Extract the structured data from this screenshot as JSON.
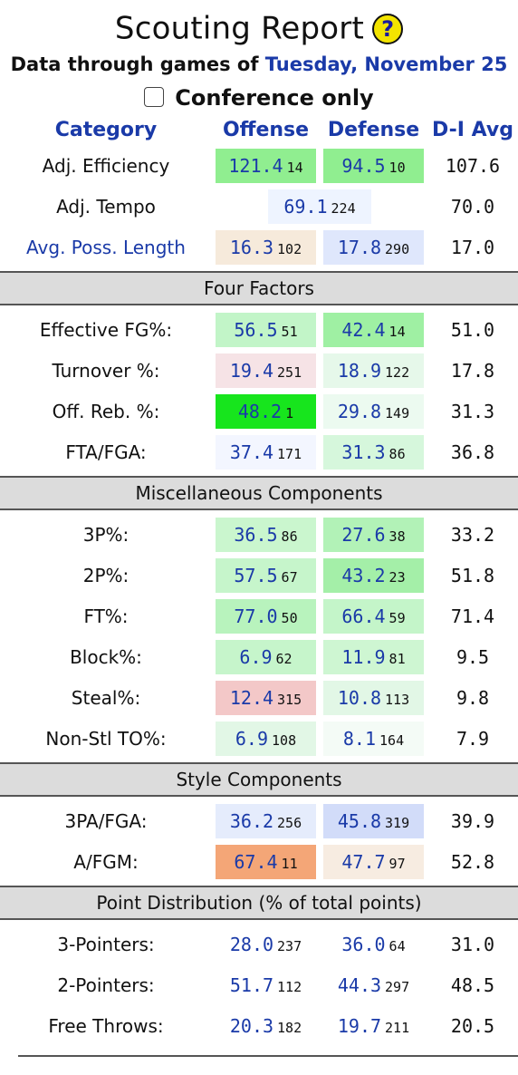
{
  "header": {
    "title": "Scouting Report",
    "help_symbol": "?",
    "subtitle_prefix": "Data through games of ",
    "subtitle_date": "Tuesday, November 25",
    "conference_only_label": "Conference only"
  },
  "columns": {
    "category": "Category",
    "offense": "Offense",
    "defense": "Defense",
    "avg": "D-I Avg"
  },
  "top_rows": [
    {
      "label": "Adj. Efficiency",
      "link": false,
      "off": "121.4",
      "off_rank": "14",
      "off_bg": "#90ee90",
      "def": "94.5",
      "def_rank": "10",
      "def_bg": "#90ee90",
      "avg": "107.6"
    },
    {
      "label": "Adj. Tempo",
      "link": false,
      "off": "69.1",
      "off_rank": "224",
      "off_bg": "#eef4ff",
      "def": "",
      "def_rank": "",
      "def_bg": "",
      "avg": "70.0",
      "tempo": true
    },
    {
      "label": "Avg. Poss. Length",
      "link": true,
      "off": "16.3",
      "off_rank": "102",
      "off_bg": "#f6eadb",
      "def": "17.8",
      "def_rank": "290",
      "def_bg": "#dfe7fc",
      "avg": "17.0"
    }
  ],
  "sections": [
    {
      "title": "Four Factors",
      "rows": [
        {
          "label": "Effective FG%:",
          "off": "56.5",
          "off_rank": "51",
          "off_bg": "#c2f5c8",
          "def": "42.4",
          "def_rank": "14",
          "def_bg": "#9ff0a3",
          "avg": "51.0"
        },
        {
          "label": "Turnover %:",
          "off": "19.4",
          "off_rank": "251",
          "off_bg": "#f6e3e6",
          "def": "18.9",
          "def_rank": "122",
          "def_bg": "#e6f8ea",
          "avg": "17.8"
        },
        {
          "label": "Off. Reb. %:",
          "off": "48.2",
          "off_rank": "1",
          "off_bg": "#17e51d",
          "def": "29.8",
          "def_rank": "149",
          "def_bg": "#ecfaf0",
          "avg": "31.3"
        },
        {
          "label": "FTA/FGA:",
          "off": "37.4",
          "off_rank": "171",
          "off_bg": "#f3f6ff",
          "def": "31.3",
          "def_rank": "86",
          "def_bg": "#d6f7dc",
          "avg": "36.8"
        }
      ]
    },
    {
      "title": "Miscellaneous Components",
      "rows": [
        {
          "label": "3P%:",
          "off": "36.5",
          "off_rank": "86",
          "off_bg": "#caf6ce",
          "def": "27.6",
          "def_rank": "38",
          "def_bg": "#b2f2b7",
          "avg": "33.2"
        },
        {
          "label": "2P%:",
          "off": "57.5",
          "off_rank": "67",
          "off_bg": "#c6f5cb",
          "def": "43.2",
          "def_rank": "23",
          "def_bg": "#a4efa8",
          "avg": "51.8"
        },
        {
          "label": "FT%:",
          "off": "77.0",
          "off_rank": "50",
          "off_bg": "#b8f3bd",
          "def": "66.4",
          "def_rank": "59",
          "def_bg": "#c4f5c9",
          "avg": "71.4"
        },
        {
          "label": "Block%:",
          "off": "6.9",
          "off_rank": "62",
          "off_bg": "#c6f5cb",
          "def": "11.9",
          "def_rank": "81",
          "def_bg": "#cef6d2",
          "avg": "9.5"
        },
        {
          "label": "Steal%:",
          "off": "12.4",
          "off_rank": "315",
          "off_bg": "#f3c8c8",
          "def": "10.8",
          "def_rank": "113",
          "def_bg": "#e2f7e6",
          "avg": "9.8"
        },
        {
          "label": "Non-Stl TO%:",
          "off": "6.9",
          "off_rank": "108",
          "off_bg": "#e2f7e6",
          "def": "8.1",
          "def_rank": "164",
          "def_bg": "#f4fbf6",
          "avg": "7.9"
        }
      ]
    },
    {
      "title": "Style Components",
      "rows": [
        {
          "label": "3PA/FGA:",
          "off": "36.2",
          "off_rank": "256",
          "off_bg": "#e5ecfc",
          "def": "45.8",
          "def_rank": "319",
          "def_bg": "#d2dcf9",
          "avg": "39.9"
        },
        {
          "label": "A/FGM:",
          "off": "67.4",
          "off_rank": "11",
          "off_bg": "#f4a677",
          "def": "47.7",
          "def_rank": "97",
          "def_bg": "#f7ece1",
          "avg": "52.8"
        }
      ]
    },
    {
      "title": "Point Distribution (% of total points)",
      "rows": [
        {
          "label": "3-Pointers:",
          "off": "28.0",
          "off_rank": "237",
          "off_bg": "",
          "def": "36.0",
          "def_rank": "64",
          "def_bg": "",
          "avg": "31.0"
        },
        {
          "label": "2-Pointers:",
          "off": "51.7",
          "off_rank": "112",
          "off_bg": "",
          "def": "44.3",
          "def_rank": "297",
          "def_bg": "",
          "avg": "48.5"
        },
        {
          "label": "Free Throws:",
          "off": "20.3",
          "off_rank": "182",
          "off_bg": "",
          "def": "19.7",
          "def_rank": "211",
          "def_bg": "",
          "avg": "20.5"
        }
      ]
    }
  ]
}
